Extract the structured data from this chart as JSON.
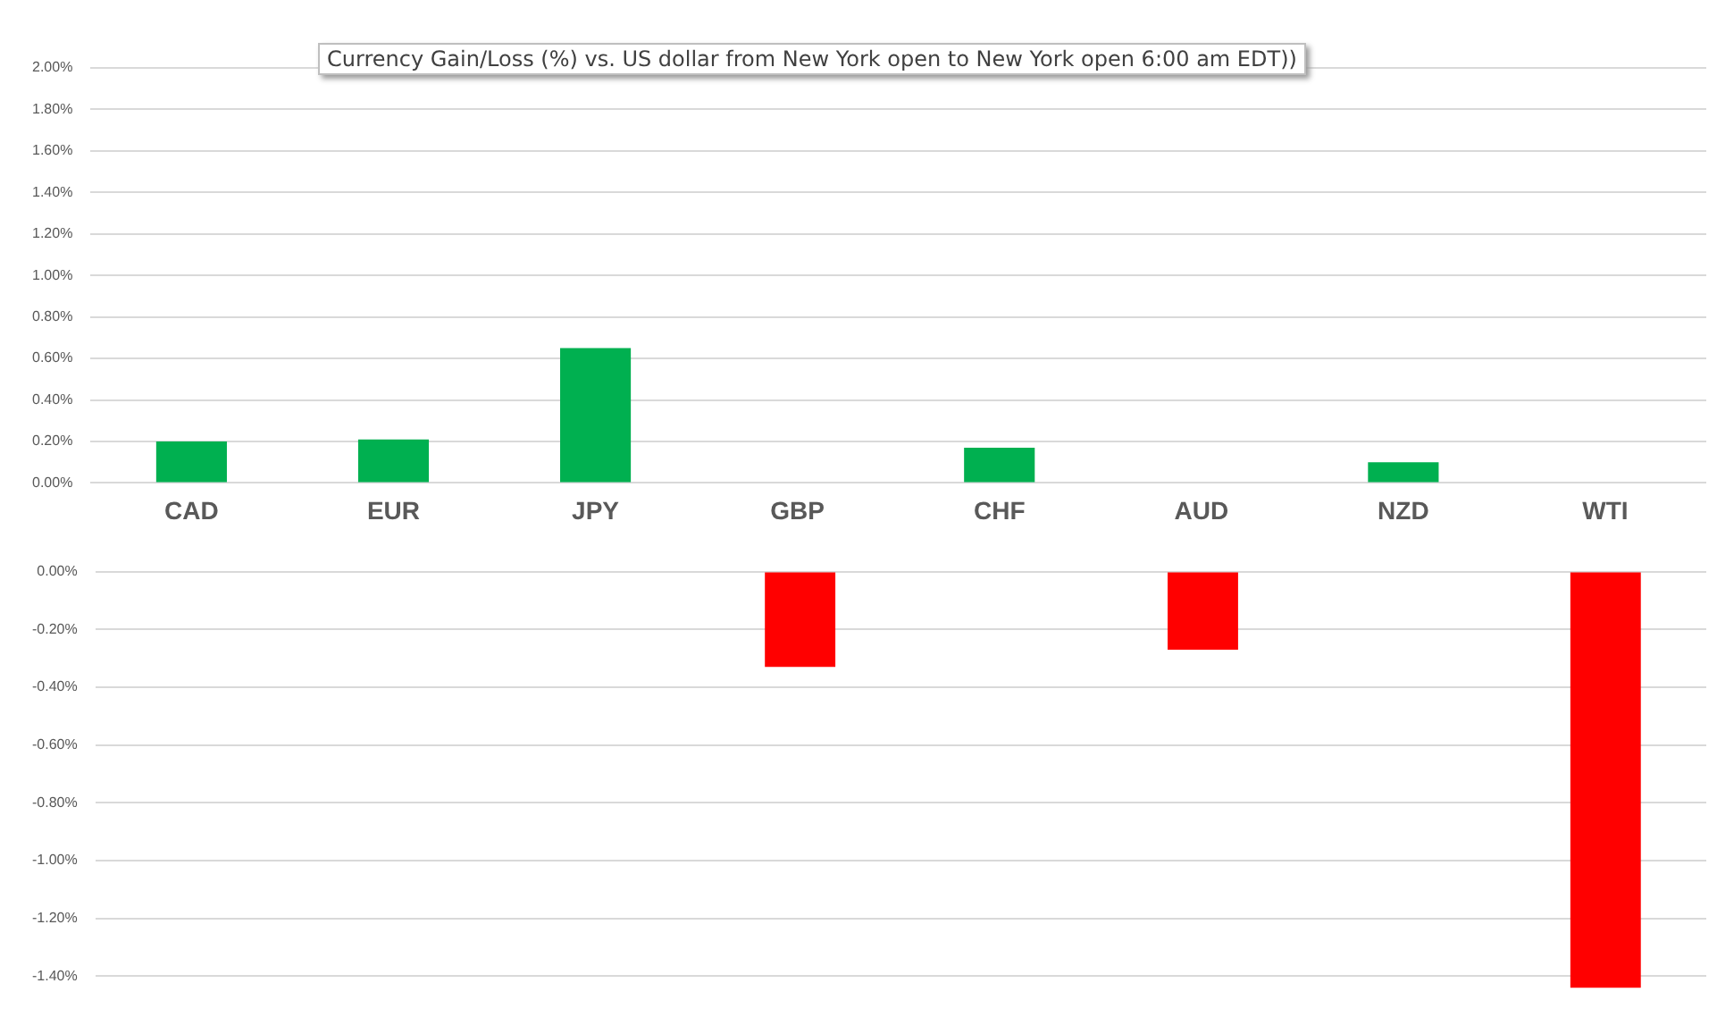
{
  "chart_data": [
    {
      "type": "bar",
      "title": "Currency  Gain/Loss (%) vs. US dollar  from New York  open to  New York open 6:00 am EDT))",
      "categories": [
        "CAD",
        "EUR",
        "JPY",
        "GBP",
        "CHF",
        "AUD",
        "NZD",
        "WTI"
      ],
      "series": [
        {
          "color": "#00b050",
          "values": [
            0.2,
            0.21,
            0.65,
            null,
            0.17,
            null,
            0.1,
            null
          ]
        }
      ],
      "ylim": [
        0,
        2
      ],
      "yticks": [
        {
          "value": 0,
          "label": "0.00%"
        },
        {
          "value": 0.2,
          "label": "0.20%"
        },
        {
          "value": 0.4,
          "label": "0.40%"
        },
        {
          "value": 0.6,
          "label": "0.60%"
        },
        {
          "value": 0.8,
          "label": "0.80%"
        },
        {
          "value": 1.0,
          "label": "1.00%"
        },
        {
          "value": 1.2,
          "label": "1.20%"
        },
        {
          "value": 1.4,
          "label": "1.40%"
        },
        {
          "value": 1.6,
          "label": "1.60%"
        },
        {
          "value": 1.8,
          "label": "1.80%"
        },
        {
          "value": 2.0,
          "label": "2.00%"
        }
      ],
      "grid": "y"
    },
    {
      "type": "bar",
      "categories": [
        null,
        null,
        null,
        null,
        null,
        null,
        null,
        null
      ],
      "series": [
        {
          "color": "#ff0000",
          "values": [
            null,
            null,
            null,
            -0.33,
            null,
            -0.27,
            null,
            -1.44
          ]
        }
      ],
      "ylim": [
        -1.45,
        0
      ],
      "yticks": [
        {
          "value": 0,
          "label": "0.00%"
        },
        {
          "value": -0.2,
          "label": "-0.20%"
        },
        {
          "value": -0.4,
          "label": "-0.40%"
        },
        {
          "value": -0.6,
          "label": "-0.60%"
        },
        {
          "value": -0.8,
          "label": "-0.80%"
        },
        {
          "value": -1.0,
          "label": "-1.00%"
        },
        {
          "value": -1.2,
          "label": "-1.20%"
        },
        {
          "value": -1.4,
          "label": "-1.40%"
        }
      ],
      "grid": "y",
      "tick_labels": "y"
    }
  ]
}
